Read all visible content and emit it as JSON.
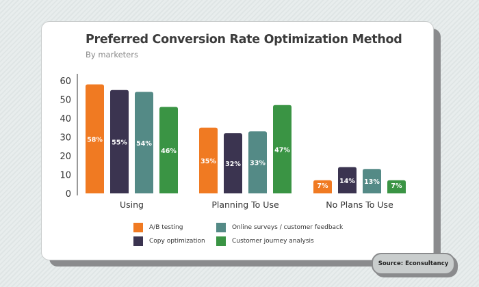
{
  "chart_data": {
    "type": "bar",
    "title": "Preferred Conversion Rate Optimization Method",
    "subtitle": "By marketers",
    "categories": [
      "Using",
      "Planning To Use",
      "No Plans To Use"
    ],
    "series": [
      {
        "name": "A/B testing",
        "color": "#f07a22",
        "values": [
          58,
          35,
          7
        ],
        "labels": [
          "58%",
          "35%",
          "7%"
        ]
      },
      {
        "name": "Copy optimization",
        "color": "#3b3450",
        "values": [
          55,
          32,
          14
        ],
        "labels": [
          "55%",
          "32%",
          "14%"
        ]
      },
      {
        "name": "Online surveys / customer feedback",
        "color": "#548a86",
        "values": [
          54,
          33,
          13
        ],
        "labels": [
          "54%",
          "33%",
          "13%"
        ]
      },
      {
        "name": "Customer journey analysis",
        "color": "#3a9444",
        "values": [
          46,
          47,
          7
        ],
        "labels": [
          "46%",
          "47%",
          "7%"
        ]
      }
    ],
    "yticks": [
      "0",
      "10",
      "20",
      "30",
      "40",
      "50",
      "60"
    ],
    "ylim": [
      0,
      60
    ],
    "grid": false,
    "legend_placement": "bottom"
  },
  "source": "Source: Econsultancy"
}
